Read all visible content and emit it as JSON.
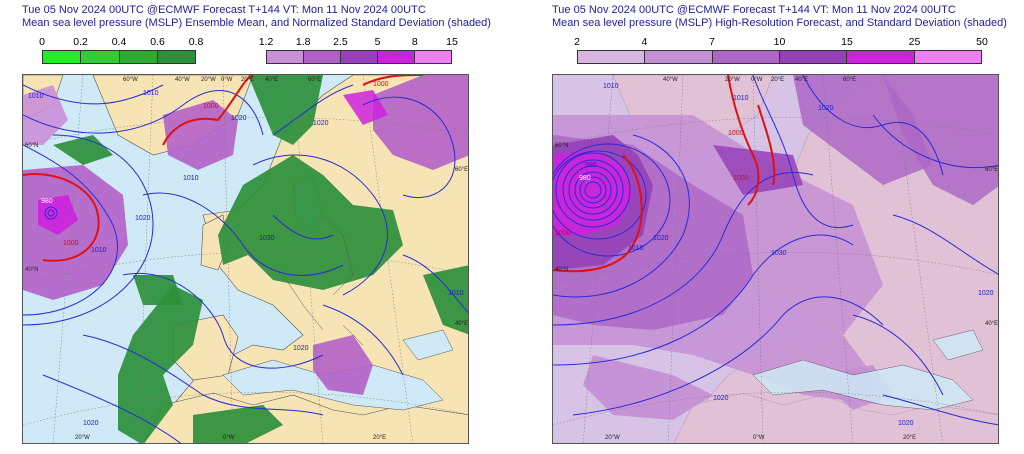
{
  "left_panel": {
    "title_line1": "Tue 05 Nov 2024 00UTC @ECMWF Forecast T+144 VT: Mon 11 Nov 2024 00UTC",
    "title_line2": "Mean sea level pressure (MSLP) Ensemble Mean, and Normalized Standard Deviation (shaded)",
    "colorbar_green": {
      "ticks": [
        "0",
        "0.2",
        "0.4",
        "0.6",
        "0.8"
      ],
      "colors": [
        "#22ee22",
        "#33cc33",
        "#2eab2e",
        "#2d8f3a"
      ]
    },
    "colorbar_purple": {
      "ticks": [
        "1.2",
        "1.8",
        "2.5",
        "5",
        "8",
        "15"
      ],
      "colors": [
        "#c98fd8",
        "#b260c8",
        "#9a3fbf",
        "#cc22dd",
        "#f07ef5"
      ]
    },
    "graticule_labels_top": [
      "60°W",
      "40°W",
      "20°W",
      "0°W",
      "20°E",
      "40°E",
      "60°E"
    ],
    "graticule_labels_left": [
      "60°N",
      "40°N"
    ],
    "graticule_labels_right": [
      "60°E",
      "40°E"
    ],
    "graticule_labels_bottom": [
      "20°W",
      "0°W",
      "20°E"
    ],
    "isobar_labels_blue": [
      "1010",
      "1010",
      "1020",
      "1010",
      "1020",
      "1030",
      "1020",
      "1010",
      "1020",
      "1010",
      "1020"
    ],
    "isobar_labels_red": [
      "1000",
      "1000",
      "1000",
      "980"
    ]
  },
  "right_panel": {
    "title_line1": "Tue 05 Nov 2024 00UTC @ECMWF Forecast T+144 VT: Mon 11 Nov 2024 00UTC",
    "title_line2": "Mean sea level pressure (MSLP) High-Resolution Forecast, and Standard Deviation (shaded)",
    "colorbar": {
      "ticks": [
        "2",
        "4",
        "7",
        "10",
        "15",
        "25",
        "50"
      ],
      "colors": [
        "#d9b6e0",
        "#c48fd4",
        "#ad67c7",
        "#9640b8",
        "#cc22dd",
        "#f07ef5"
      ]
    },
    "graticule_labels_top": [
      "40°W",
      "20°W",
      "0°W",
      "20°E",
      "40°E",
      "60°E"
    ],
    "graticule_labels_left": [
      "60°N",
      "40°N"
    ],
    "graticule_labels_right": [
      "60°E",
      "40°E"
    ],
    "graticule_labels_bottom": [
      "20°W",
      "0°W",
      "20°E"
    ],
    "isobar_labels_blue": [
      "1010",
      "990",
      "980",
      "1010",
      "1020",
      "1020",
      "1030",
      "1020",
      "1010",
      "1020",
      "1020"
    ],
    "isobar_labels_red": [
      "1000",
      "1000",
      "1000"
    ]
  }
}
